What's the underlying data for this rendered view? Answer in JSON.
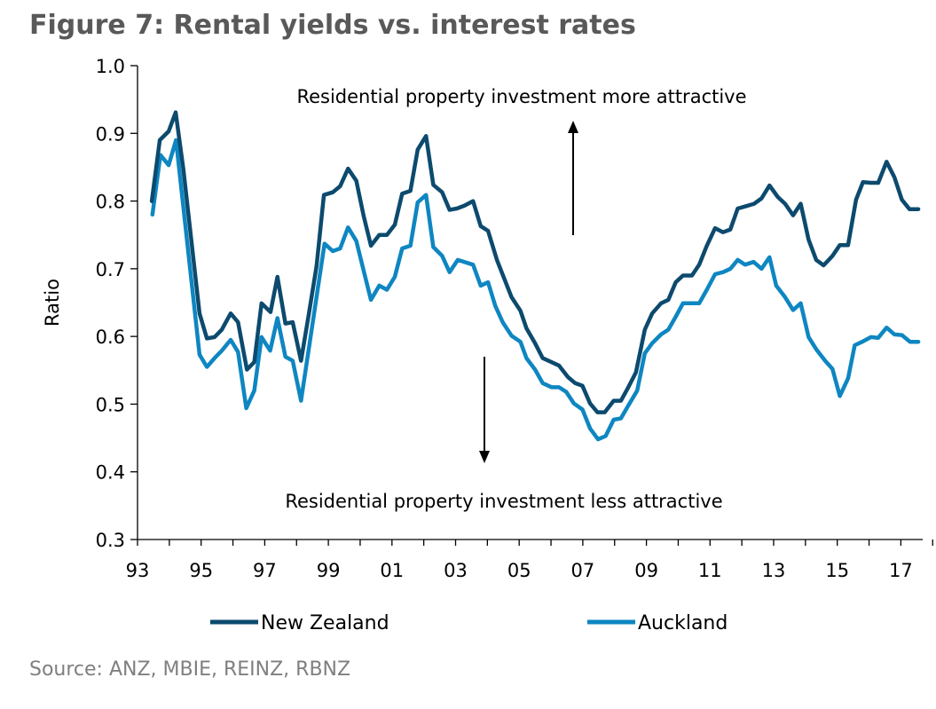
{
  "chart_data": {
    "type": "line",
    "title": "Figure 7: Rental yields vs. interest rates",
    "xlabel": "",
    "ylabel": "Ratio",
    "ylim": [
      0.3,
      1.0
    ],
    "xlim": [
      1993,
      2018
    ],
    "yticks": [
      "0.3",
      "0.4",
      "0.5",
      "0.6",
      "0.7",
      "0.8",
      "0.9",
      "1.0"
    ],
    "ytick_values": [
      0.3,
      0.4,
      0.5,
      0.6,
      0.7,
      0.8,
      0.9,
      1.0
    ],
    "xticks": [
      "93",
      "95",
      "97",
      "99",
      "01",
      "03",
      "05",
      "07",
      "09",
      "11",
      "13",
      "15",
      "17"
    ],
    "xtick_values": [
      1993,
      1995,
      1997,
      1999,
      2001,
      2003,
      2005,
      2007,
      2009,
      2011,
      2013,
      2015,
      2017
    ],
    "grid": false,
    "legend_position": "bottom",
    "annotations": {
      "top": "Residential property investment more attractive",
      "bottom": "Residential property investment less attractive"
    },
    "source": "Source: ANZ, MBIE, REINZ, RBNZ",
    "series": [
      {
        "name": "New Zealand",
        "color": "#0c4a6e",
        "x": [
          1993.45,
          1993.7,
          1993.98,
          1994.2,
          1994.44,
          1994.95,
          1995.18,
          1995.42,
          1995.65,
          1995.93,
          1996.16,
          1996.44,
          1996.67,
          1996.9,
          1997.18,
          1997.4,
          1997.65,
          1997.88,
          1998.14,
          1998.39,
          1998.63,
          1998.86,
          1999.14,
          1999.37,
          1999.62,
          1999.88,
          2000.11,
          2000.34,
          2000.6,
          2000.84,
          2001.09,
          2001.32,
          2001.58,
          2001.81,
          2002.07,
          2002.3,
          2002.58,
          2002.81,
          2003.04,
          2003.27,
          2003.55,
          2003.79,
          2004.02,
          2004.3,
          2004.76,
          2005.04,
          2005.23,
          2005.5,
          2005.74,
          2006.25,
          2006.53,
          2006.76,
          2006.99,
          2007.23,
          2007.46,
          2007.69,
          2007.97,
          2008.2,
          2008.43,
          2008.67,
          2008.95,
          2009.18,
          2009.46,
          2009.69,
          2009.92,
          2010.15,
          2010.43,
          2010.66,
          2010.9,
          2011.16,
          2011.41,
          2011.64,
          2011.87,
          2012.1,
          2012.39,
          2012.62,
          2012.87,
          2013.13,
          2013.36,
          2013.61,
          2013.85,
          2014.1,
          2014.34,
          2014.57,
          2014.85,
          2015.08,
          2015.34,
          2015.59,
          2015.81,
          2016.06,
          2016.29,
          2016.55,
          2016.8,
          2017.03,
          2017.27,
          2017.55
        ],
        "values": [
          0.8,
          0.89,
          0.903,
          0.931,
          0.848,
          0.634,
          0.597,
          0.599,
          0.61,
          0.634,
          0.621,
          0.551,
          0.562,
          0.649,
          0.636,
          0.688,
          0.619,
          0.621,
          0.564,
          0.634,
          0.704,
          0.809,
          0.813,
          0.822,
          0.848,
          0.83,
          0.778,
          0.734,
          0.75,
          0.75,
          0.765,
          0.811,
          0.815,
          0.876,
          0.896,
          0.824,
          0.813,
          0.787,
          0.789,
          0.793,
          0.8,
          0.763,
          0.756,
          0.713,
          0.658,
          0.638,
          0.612,
          0.59,
          0.568,
          0.557,
          0.54,
          0.531,
          0.527,
          0.501,
          0.488,
          0.488,
          0.505,
          0.505,
          0.525,
          0.547,
          0.61,
          0.634,
          0.649,
          0.654,
          0.68,
          0.69,
          0.69,
          0.706,
          0.734,
          0.76,
          0.754,
          0.758,
          0.789,
          0.792,
          0.796,
          0.804,
          0.823,
          0.806,
          0.796,
          0.779,
          0.796,
          0.743,
          0.713,
          0.705,
          0.719,
          0.735,
          0.735,
          0.802,
          0.828,
          0.827,
          0.827,
          0.858,
          0.835,
          0.802,
          0.788,
          0.788
        ]
      },
      {
        "name": "Auckland",
        "color": "#0e86c1",
        "x": [
          1993.47,
          1993.72,
          1993.98,
          1994.21,
          1994.95,
          1995.18,
          1995.42,
          1995.65,
          1995.93,
          1996.16,
          1996.42,
          1996.67,
          1996.9,
          1997.17,
          1997.4,
          1997.65,
          1997.88,
          1998.14,
          1998.88,
          1999.14,
          1999.37,
          1999.62,
          1999.88,
          2000.11,
          2000.34,
          2000.6,
          2000.84,
          2001.09,
          2001.32,
          2001.58,
          2001.81,
          2002.07,
          2002.3,
          2002.58,
          2002.81,
          2003.07,
          2003.55,
          2003.79,
          2004.02,
          2004.25,
          2004.48,
          2004.76,
          2005.04,
          2005.23,
          2005.5,
          2005.74,
          2006.02,
          2006.25,
          2006.48,
          2006.72,
          2006.99,
          2007.23,
          2007.48,
          2007.72,
          2007.97,
          2008.2,
          2008.43,
          2008.71,
          2008.95,
          2009.18,
          2009.46,
          2009.69,
          2009.92,
          2010.15,
          2010.66,
          2010.9,
          2011.16,
          2011.41,
          2011.64,
          2011.87,
          2012.1,
          2012.37,
          2012.62,
          2012.87,
          2013.08,
          2013.36,
          2013.61,
          2013.85,
          2014.1,
          2014.34,
          2014.62,
          2014.85,
          2015.08,
          2015.34,
          2015.55,
          2015.78,
          2016.06,
          2016.29,
          2016.55,
          2016.8,
          2017.03,
          2017.29,
          2017.55
        ],
        "values": [
          0.78,
          0.868,
          0.853,
          0.89,
          0.573,
          0.555,
          0.568,
          0.579,
          0.595,
          0.577,
          0.494,
          0.52,
          0.599,
          0.579,
          0.627,
          0.57,
          0.564,
          0.505,
          0.737,
          0.726,
          0.73,
          0.761,
          0.741,
          0.697,
          0.654,
          0.675,
          0.669,
          0.688,
          0.73,
          0.734,
          0.798,
          0.809,
          0.732,
          0.719,
          0.695,
          0.713,
          0.706,
          0.675,
          0.68,
          0.645,
          0.621,
          0.601,
          0.592,
          0.568,
          0.551,
          0.531,
          0.525,
          0.525,
          0.518,
          0.501,
          0.492,
          0.464,
          0.448,
          0.453,
          0.477,
          0.479,
          0.498,
          0.52,
          0.575,
          0.59,
          0.603,
          0.61,
          0.629,
          0.649,
          0.649,
          0.669,
          0.692,
          0.695,
          0.7,
          0.713,
          0.706,
          0.71,
          0.7,
          0.717,
          0.675,
          0.658,
          0.639,
          0.649,
          0.599,
          0.581,
          0.564,
          0.552,
          0.512,
          0.538,
          0.587,
          0.592,
          0.599,
          0.598,
          0.613,
          0.603,
          0.602,
          0.592,
          0.592
        ]
      }
    ]
  }
}
